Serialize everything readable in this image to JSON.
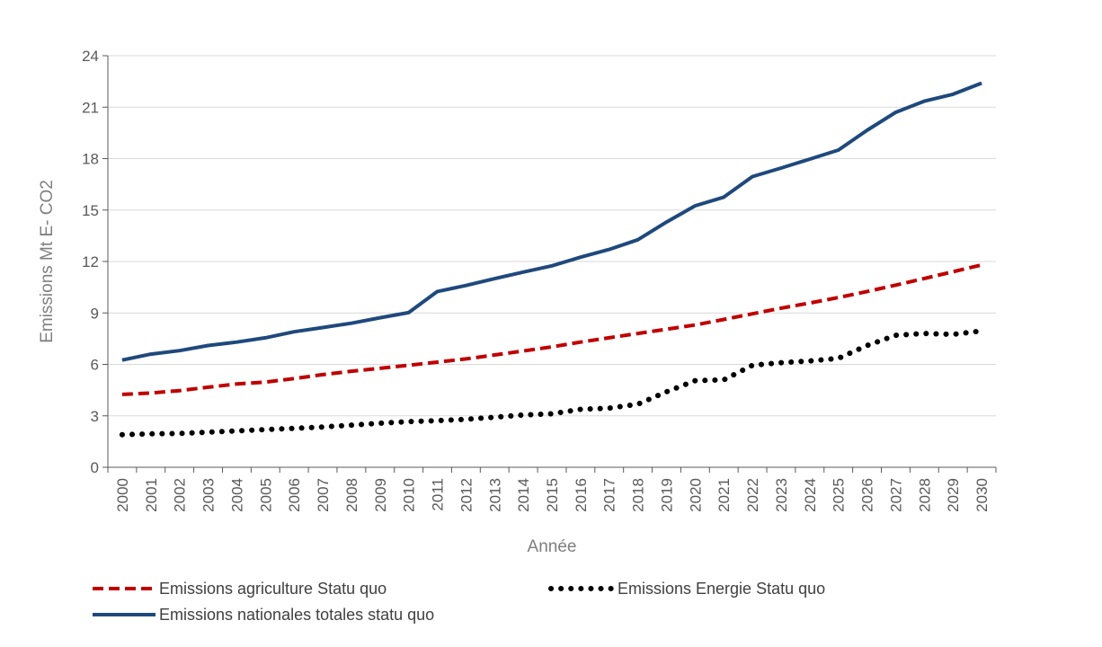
{
  "chart_data": {
    "type": "line",
    "title": "",
    "xlabel": "Année",
    "ylabel": "Emissions Mt E- CO2",
    "ylim": [
      0,
      24
    ],
    "yticks": [
      0,
      3,
      6,
      9,
      12,
      15,
      18,
      21,
      24
    ],
    "grid": true,
    "legend_position": "bottom",
    "x": [
      "2000",
      "2001",
      "2002",
      "2003",
      "2004",
      "2005",
      "2006",
      "2007",
      "2008",
      "2009",
      "2010",
      "2011",
      "2012",
      "2013",
      "2014",
      "2015",
      "2016",
      "2017",
      "2018",
      "2019",
      "2020",
      "2021",
      "2022",
      "2023",
      "2024",
      "2025",
      "2026",
      "2027",
      "2028",
      "2029",
      "2030"
    ],
    "series": [
      {
        "name": "Emissions agriculture Statu quo",
        "color": "#c00000",
        "style": "dashed",
        "values": [
          4.25,
          4.33,
          4.47,
          4.67,
          4.86,
          4.97,
          5.17,
          5.4,
          5.6,
          5.77,
          5.95,
          6.13,
          6.32,
          6.55,
          6.78,
          7.02,
          7.3,
          7.55,
          7.8,
          8.05,
          8.3,
          8.62,
          8.95,
          9.28,
          9.58,
          9.9,
          10.25,
          10.62,
          11.01,
          11.4,
          11.8
        ]
      },
      {
        "name": "Emissions Energie Statu quo",
        "color": "#000000",
        "style": "dotted",
        "values": [
          1.9,
          1.95,
          1.97,
          2.05,
          2.12,
          2.2,
          2.27,
          2.35,
          2.46,
          2.57,
          2.66,
          2.72,
          2.8,
          2.92,
          3.05,
          3.12,
          3.38,
          3.45,
          3.68,
          4.4,
          5.05,
          5.1,
          5.95,
          6.1,
          6.2,
          6.35,
          7.1,
          7.7,
          7.8,
          7.75,
          7.95
        ]
      },
      {
        "name": "Emissions nationales totales statu quo",
        "color": "#1f497d",
        "style": "solid",
        "values": [
          6.25,
          6.6,
          6.8,
          7.1,
          7.3,
          7.55,
          7.9,
          8.15,
          8.4,
          8.72,
          9.02,
          10.25,
          10.6,
          11.0,
          11.38,
          11.75,
          12.25,
          12.7,
          13.27,
          14.3,
          15.25,
          15.75,
          16.95,
          17.45,
          17.97,
          18.5,
          19.65,
          20.7,
          21.35,
          21.75,
          22.4
        ]
      }
    ]
  }
}
